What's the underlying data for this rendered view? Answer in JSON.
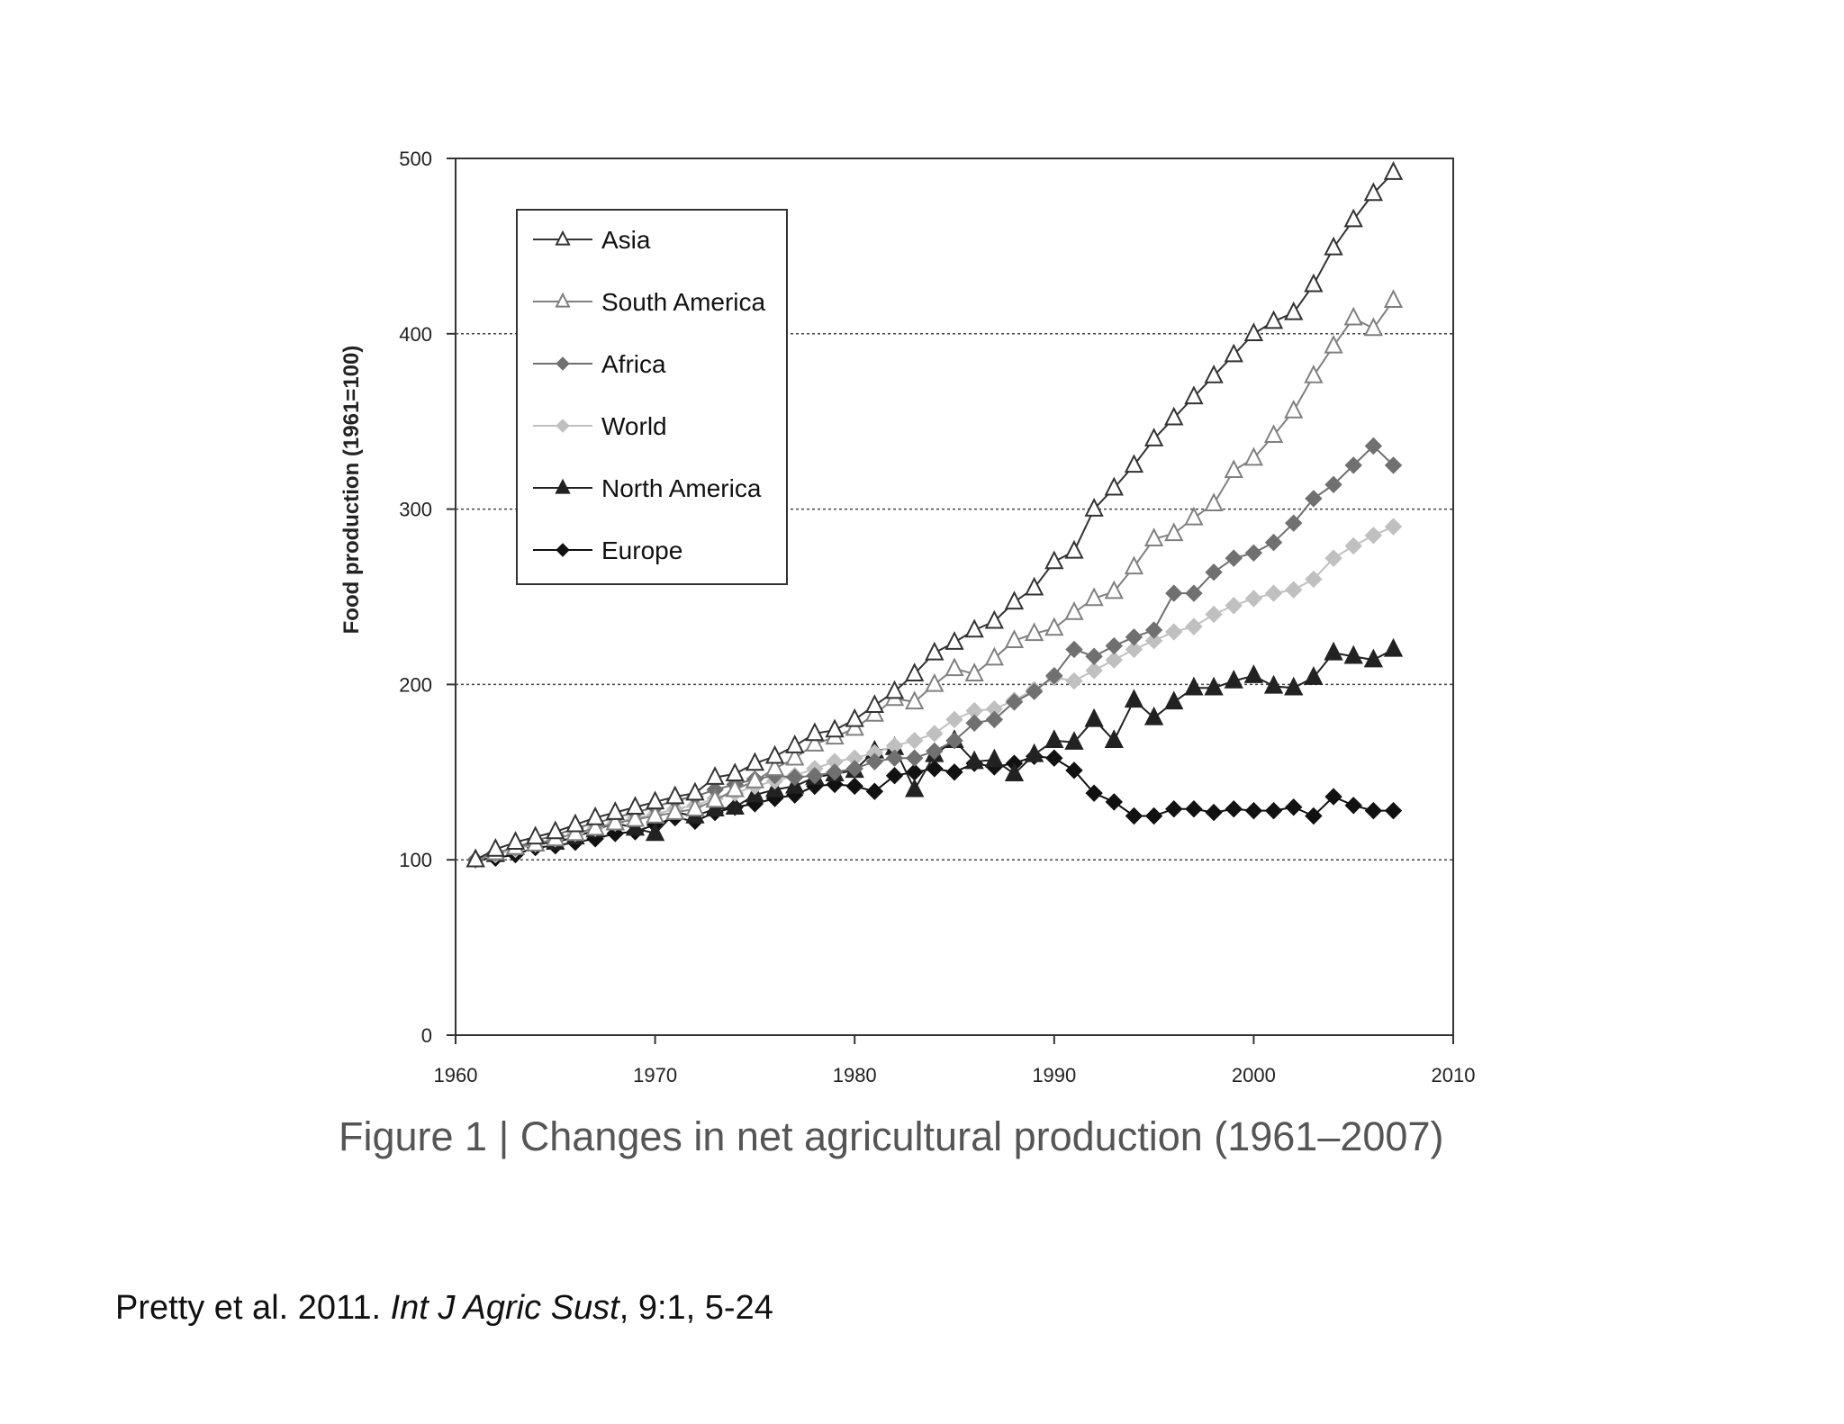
{
  "caption": {
    "text": "Figure 1 | Changes in net agricultural production (1961–2007)"
  },
  "citation": {
    "authors": "Pretty et al. 2011.",
    "journal": "Int J Agric Sust",
    "details": ", 9:1, 5-24"
  },
  "chart_data": {
    "type": "line",
    "title": "",
    "xlabel": "",
    "ylabel": "Food production (1961=100)",
    "xlim": [
      1960,
      2010
    ],
    "ylim": [
      0,
      500
    ],
    "x_ticks": [
      1960,
      1970,
      1980,
      1990,
      2000,
      2010
    ],
    "y_ticks": [
      0,
      100,
      200,
      300,
      400,
      500
    ],
    "grid": "horizontal dotted at 100, 200, 300, 400",
    "legend_position": "top-left",
    "x": [
      1961,
      1962,
      1963,
      1964,
      1965,
      1966,
      1967,
      1968,
      1969,
      1970,
      1971,
      1972,
      1973,
      1974,
      1975,
      1976,
      1977,
      1978,
      1979,
      1980,
      1981,
      1982,
      1983,
      1984,
      1985,
      1986,
      1987,
      1988,
      1989,
      1990,
      1991,
      1992,
      1993,
      1994,
      1995,
      1996,
      1997,
      1998,
      1999,
      2000,
      2001,
      2002,
      2003,
      2004,
      2005,
      2006,
      2007
    ],
    "series": [
      {
        "name": "Asia",
        "marker": "triangle-open",
        "color": "#333333",
        "values": [
          100,
          106,
          110,
          113,
          116,
          120,
          124,
          127,
          130,
          133,
          136,
          138,
          147,
          149,
          155,
          159,
          165,
          172,
          174,
          180,
          188,
          196,
          206,
          218,
          224,
          231,
          236,
          247,
          255,
          270,
          276,
          300,
          312,
          325,
          340,
          352,
          364,
          376,
          388,
          400,
          407,
          412,
          428,
          449,
          465,
          480,
          492
        ]
      },
      {
        "name": "South America",
        "marker": "triangle-open",
        "color": "#808080",
        "values": [
          100,
          104,
          107,
          109,
          112,
          115,
          118,
          121,
          123,
          125,
          127,
          129,
          134,
          140,
          145,
          152,
          158,
          166,
          170,
          175,
          183,
          192,
          190,
          200,
          209,
          206,
          215,
          225,
          229,
          232,
          241,
          249,
          253,
          267,
          283,
          286,
          295,
          303,
          322,
          329,
          342,
          356,
          376,
          393,
          409,
          403,
          419
        ]
      },
      {
        "name": "Africa",
        "marker": "diamond",
        "color": "#707070",
        "values": [
          100,
          104,
          107,
          111,
          114,
          118,
          121,
          124,
          127,
          130,
          134,
          136,
          140,
          143,
          146,
          148,
          147,
          148,
          150,
          152,
          156,
          158,
          158,
          162,
          168,
          178,
          180,
          190,
          196,
          205,
          220,
          216,
          222,
          227,
          231,
          252,
          252,
          264,
          272,
          275,
          281,
          292,
          306,
          314,
          325,
          336,
          325
        ]
      },
      {
        "name": "World",
        "marker": "diamond",
        "color": "#c0c0c0",
        "values": [
          100,
          103,
          106,
          109,
          112,
          115,
          118,
          121,
          124,
          126,
          129,
          131,
          135,
          138,
          142,
          145,
          148,
          152,
          156,
          158,
          161,
          165,
          168,
          172,
          180,
          185,
          186,
          191,
          197,
          204,
          202,
          208,
          214,
          220,
          225,
          230,
          233,
          240,
          245,
          249,
          252,
          254,
          260,
          272,
          279,
          285,
          290
        ]
      },
      {
        "name": "North America",
        "marker": "triangle-filled",
        "color": "#222222",
        "values": [
          100,
          103,
          107,
          109,
          110,
          113,
          117,
          121,
          118,
          115,
          127,
          125,
          129,
          130,
          137,
          140,
          142,
          147,
          149,
          151,
          162,
          164,
          140,
          160,
          168,
          156,
          157,
          149,
          160,
          168,
          167,
          180,
          168,
          191,
          181,
          190,
          198,
          198,
          202,
          205,
          199,
          198,
          204,
          218,
          216,
          214,
          220
        ]
      },
      {
        "name": "Europe",
        "marker": "diamond",
        "color": "#111111",
        "values": [
          100,
          101,
          103,
          107,
          108,
          110,
          112,
          115,
          116,
          120,
          124,
          122,
          127,
          130,
          132,
          135,
          137,
          142,
          143,
          142,
          139,
          148,
          150,
          152,
          150,
          155,
          153,
          155,
          159,
          158,
          151,
          138,
          133,
          125,
          125,
          129,
          129,
          127,
          129,
          128,
          128,
          130,
          125,
          136,
          131,
          128,
          128
        ]
      }
    ]
  }
}
